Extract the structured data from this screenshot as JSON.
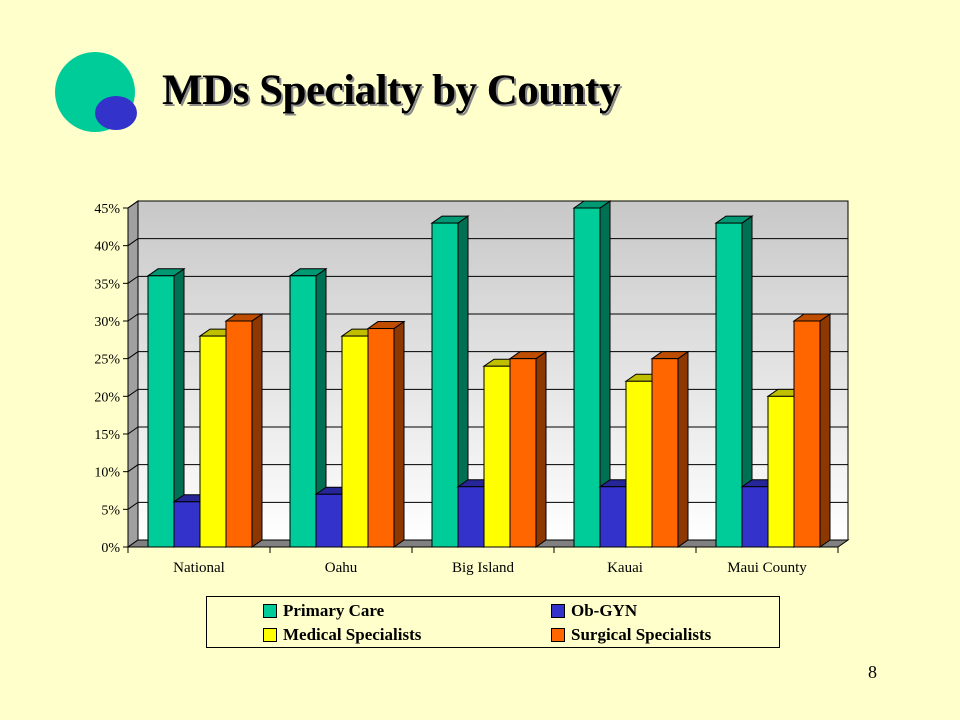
{
  "slide": {
    "title": "MDs Specialty by County",
    "page_number": "8"
  },
  "logo": {
    "icon": "overlapping-circles-logo",
    "colors": {
      "large_circle": "#00cc99",
      "small_circle": "#3333cc"
    }
  },
  "chart_data": {
    "type": "bar",
    "style": "3d-clustered-column",
    "categories": [
      "National",
      "Oahu",
      "Big Island",
      "Kauai",
      "Maui County"
    ],
    "series": [
      {
        "name": "Primary Care",
        "color": "#00cc99",
        "values": [
          36,
          36,
          43,
          45,
          43
        ]
      },
      {
        "name": "Ob-GYN",
        "color": "#3333cc",
        "values": [
          6,
          7,
          8,
          8,
          8
        ]
      },
      {
        "name": "Medical Specialists",
        "color": "#ffff00",
        "values": [
          28,
          28,
          24,
          22,
          20
        ]
      },
      {
        "name": "Surgical Specialists",
        "color": "#ff6600",
        "values": [
          30,
          29,
          25,
          25,
          30
        ]
      }
    ],
    "y_ticks": [
      "0%",
      "5%",
      "10%",
      "15%",
      "20%",
      "25%",
      "30%",
      "35%",
      "40%",
      "45%"
    ],
    "ylim": [
      0,
      45
    ],
    "y_unit": "%",
    "grid": true,
    "legend_position": "bottom"
  }
}
